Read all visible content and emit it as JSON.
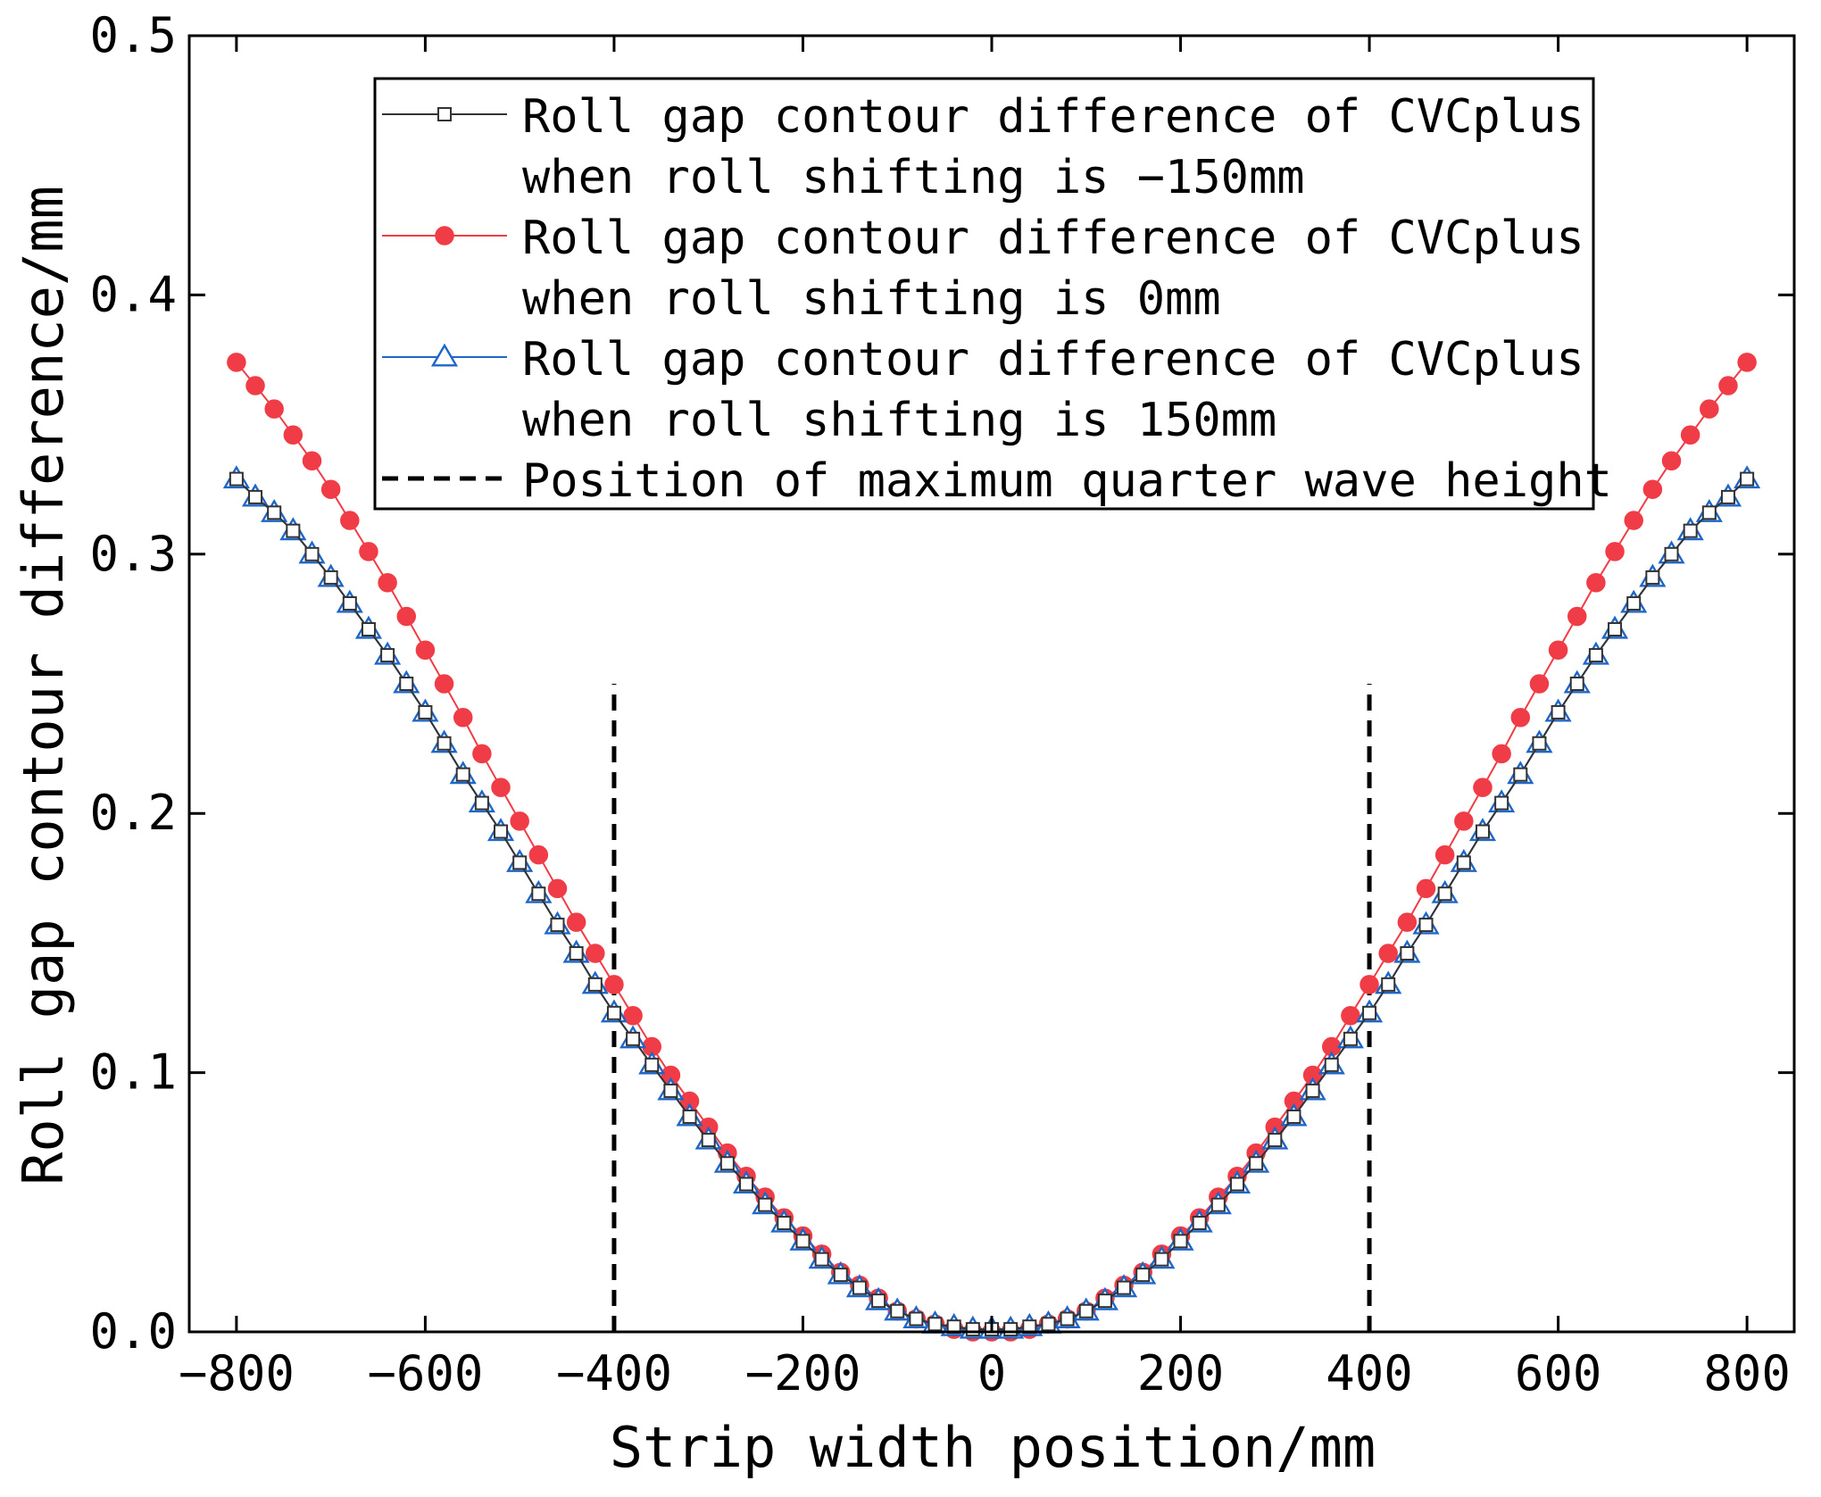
{
  "chart_data": {
    "type": "line",
    "xlabel": "Strip width position/mm",
    "ylabel": "Roll gap contour difference/mm",
    "xlim": [
      -850,
      850
    ],
    "ylim": [
      0,
      0.5
    ],
    "xticks": [
      -800,
      -600,
      -400,
      -200,
      0,
      200,
      400,
      600,
      800
    ],
    "yticks": [
      0.0,
      0.1,
      0.2,
      0.3,
      0.4,
      0.5
    ],
    "xtick_labels": [
      "−800",
      "−600",
      "−400",
      "−200",
      "0",
      "200",
      "400",
      "600",
      "800"
    ],
    "ytick_labels": [
      "0.0",
      "0.1",
      "0.2",
      "0.3",
      "0.4",
      "0.5"
    ],
    "grid": false,
    "legend_position": "top-center",
    "x": [
      -800,
      -780,
      -760,
      -740,
      -720,
      -700,
      -680,
      -660,
      -640,
      -620,
      -600,
      -580,
      -560,
      -540,
      -520,
      -500,
      -480,
      -460,
      -440,
      -420,
      -400,
      -380,
      -360,
      -340,
      -320,
      -300,
      -280,
      -260,
      -240,
      -220,
      -200,
      -180,
      -160,
      -140,
      -120,
      -100,
      -80,
      -60,
      -40,
      -20,
      0,
      20,
      40,
      60,
      80,
      100,
      120,
      140,
      160,
      180,
      200,
      220,
      240,
      260,
      280,
      300,
      320,
      340,
      360,
      380,
      400,
      420,
      440,
      460,
      480,
      500,
      520,
      540,
      560,
      580,
      600,
      620,
      640,
      660,
      680,
      700,
      720,
      740,
      760,
      780,
      800
    ],
    "series": [
      {
        "name": "Roll gap contour difference of CVCplus when roll shifting is -150mm",
        "legend_lines": [
          "Roll gap contour difference of CVCplus",
          "when roll shifting is −150mm"
        ],
        "color": "#333333",
        "marker": "square-open",
        "values": [
          0.329,
          0.322,
          0.316,
          0.309,
          0.3,
          0.291,
          0.281,
          0.271,
          0.261,
          0.25,
          0.239,
          0.227,
          0.215,
          0.204,
          0.193,
          0.181,
          0.169,
          0.157,
          0.146,
          0.134,
          0.123,
          0.113,
          0.103,
          0.093,
          0.083,
          0.074,
          0.065,
          0.057,
          0.049,
          0.042,
          0.035,
          0.028,
          0.022,
          0.017,
          0.012,
          0.008,
          0.005,
          0.003,
          0.002,
          0.001,
          0.001,
          0.001,
          0.002,
          0.003,
          0.005,
          0.008,
          0.012,
          0.017,
          0.022,
          0.028,
          0.035,
          0.042,
          0.049,
          0.057,
          0.065,
          0.074,
          0.083,
          0.093,
          0.103,
          0.113,
          0.123,
          0.134,
          0.146,
          0.157,
          0.169,
          0.181,
          0.193,
          0.204,
          0.215,
          0.227,
          0.239,
          0.25,
          0.261,
          0.271,
          0.281,
          0.291,
          0.3,
          0.309,
          0.316,
          0.322,
          0.329
        ]
      },
      {
        "name": "Roll gap contour difference of CVCplus when roll shifting is 0mm",
        "legend_lines": [
          "Roll gap contour difference of CVCplus",
          "when roll shifting is 0mm"
        ],
        "color": "#f03c46",
        "marker": "circle-filled",
        "values": [
          0.374,
          0.365,
          0.356,
          0.346,
          0.336,
          0.325,
          0.313,
          0.301,
          0.289,
          0.276,
          0.263,
          0.25,
          0.237,
          0.223,
          0.21,
          0.197,
          0.184,
          0.171,
          0.158,
          0.146,
          0.134,
          0.122,
          0.11,
          0.099,
          0.089,
          0.079,
          0.069,
          0.06,
          0.052,
          0.044,
          0.037,
          0.03,
          0.023,
          0.018,
          0.013,
          0.008,
          0.005,
          0.003,
          0.001,
          0.0,
          0.0,
          0.0,
          0.001,
          0.003,
          0.005,
          0.008,
          0.013,
          0.018,
          0.023,
          0.03,
          0.037,
          0.044,
          0.052,
          0.06,
          0.069,
          0.079,
          0.089,
          0.099,
          0.11,
          0.122,
          0.134,
          0.146,
          0.158,
          0.171,
          0.184,
          0.197,
          0.21,
          0.223,
          0.237,
          0.25,
          0.263,
          0.276,
          0.289,
          0.301,
          0.313,
          0.325,
          0.336,
          0.346,
          0.356,
          0.365,
          0.374
        ]
      },
      {
        "name": "Roll gap contour difference of CVCplus when roll shifting is 150mm",
        "legend_lines": [
          "Roll gap contour difference of CVCplus",
          "when roll shifting is 150mm"
        ],
        "color": "#1f66c9",
        "marker": "triangle-open",
        "values": [
          0.329,
          0.322,
          0.316,
          0.309,
          0.3,
          0.291,
          0.281,
          0.271,
          0.261,
          0.25,
          0.239,
          0.227,
          0.215,
          0.204,
          0.193,
          0.181,
          0.169,
          0.157,
          0.146,
          0.134,
          0.123,
          0.113,
          0.103,
          0.093,
          0.083,
          0.074,
          0.065,
          0.057,
          0.049,
          0.042,
          0.035,
          0.028,
          0.022,
          0.017,
          0.012,
          0.008,
          0.005,
          0.003,
          0.002,
          0.001,
          0.001,
          0.001,
          0.002,
          0.003,
          0.005,
          0.008,
          0.012,
          0.017,
          0.022,
          0.028,
          0.035,
          0.042,
          0.049,
          0.057,
          0.065,
          0.074,
          0.083,
          0.093,
          0.103,
          0.113,
          0.123,
          0.134,
          0.146,
          0.157,
          0.169,
          0.181,
          0.193,
          0.204,
          0.215,
          0.227,
          0.239,
          0.25,
          0.261,
          0.271,
          0.281,
          0.291,
          0.3,
          0.309,
          0.316,
          0.322,
          0.329
        ]
      }
    ],
    "reference_lines": {
      "name": "Position of maximum quarter wave height",
      "color": "#000000",
      "style": "dashed",
      "x": [
        -400,
        400
      ],
      "y_range": [
        0,
        0.25
      ]
    }
  }
}
